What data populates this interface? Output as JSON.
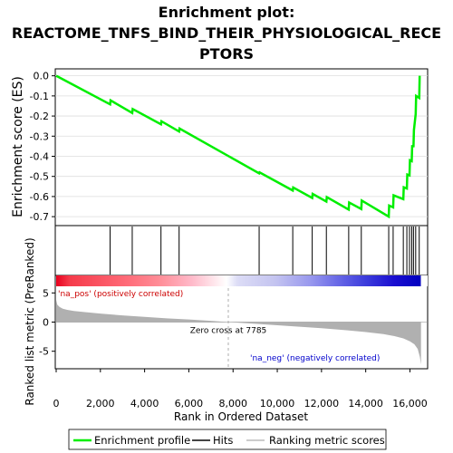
{
  "chart_data": {
    "type": "line",
    "title_lines": [
      "Enrichment plot:",
      "REACTOME_TNFS_BIND_THEIR_PHYSIOLOGICAL_RECE",
      "PTORS"
    ],
    "es_ylabel": "Enrichment score (ES)",
    "es_ylim": [
      -0.74,
      0.03
    ],
    "es_yticks": [
      0.0,
      -0.1,
      -0.2,
      -0.3,
      -0.4,
      -0.5,
      -0.6,
      -0.7
    ],
    "es_ytick_labels": [
      "0.0",
      "-0.1",
      "-0.2",
      "-0.3",
      "-0.4",
      "-0.5",
      "-0.6",
      "-0.7"
    ],
    "xlabel": "Rank in Ordered Dataset",
    "xlim": [
      0,
      16800
    ],
    "xticks": [
      0,
      2000,
      4000,
      6000,
      8000,
      10000,
      12000,
      14000,
      16000
    ],
    "xtick_labels": [
      "0",
      "2,000",
      "4,000",
      "6,000",
      "8,000",
      "10,000",
      "12,000",
      "14,000",
      "16,000"
    ],
    "enrichment_profile": {
      "x": [
        0,
        2440,
        2460,
        3440,
        3460,
        4740,
        4760,
        5560,
        5580,
        9180,
        9200,
        10700,
        10720,
        11580,
        11600,
        12220,
        12240,
        13230,
        13250,
        13800,
        13820,
        15040,
        15060,
        15240,
        15260,
        15700,
        15720,
        15860,
        15880,
        15980,
        16000,
        16080,
        16100,
        16160,
        16180,
        16260,
        16280,
        16420,
        16440
      ],
      "y": [
        0.0,
        -0.142,
        -0.122,
        -0.185,
        -0.165,
        -0.241,
        -0.226,
        -0.277,
        -0.262,
        -0.485,
        -0.48,
        -0.57,
        -0.555,
        -0.607,
        -0.587,
        -0.625,
        -0.603,
        -0.665,
        -0.63,
        -0.662,
        -0.62,
        -0.7,
        -0.645,
        -0.654,
        -0.594,
        -0.613,
        -0.554,
        -0.56,
        -0.491,
        -0.495,
        -0.42,
        -0.424,
        -0.35,
        -0.35,
        -0.27,
        -0.19,
        -0.1,
        -0.11,
        0.0
      ]
    },
    "hits": [
      2440,
      3440,
      4740,
      5560,
      9180,
      10700,
      11580,
      12220,
      13230,
      13800,
      15040,
      15240,
      15700,
      15860,
      15980,
      16080,
      16160,
      16260,
      16420
    ],
    "metric_ylabel": "Ranked list metric (PreRanked)",
    "metric_ylim": [
      -8,
      8
    ],
    "metric_yticks": [
      5,
      0,
      -5
    ],
    "metric_ytick_labels": [
      "5",
      "0",
      "-5"
    ],
    "metric_curve": {
      "x": [
        0,
        50,
        150,
        300,
        500,
        800,
        1200,
        2000,
        3000,
        4000,
        5000,
        6000,
        7000,
        7785,
        9000,
        10000,
        11000,
        12000,
        13000,
        14000,
        14800,
        15300,
        15700,
        16000,
        16200,
        16350,
        16450,
        16500
      ],
      "y": [
        3.8,
        3.0,
        2.6,
        2.3,
        2.1,
        1.9,
        1.75,
        1.45,
        1.15,
        0.9,
        0.65,
        0.45,
        0.22,
        0.0,
        -0.3,
        -0.55,
        -0.8,
        -1.05,
        -1.35,
        -1.7,
        -2.05,
        -2.4,
        -2.8,
        -3.3,
        -3.8,
        -4.6,
        -6.0,
        -7.3
      ]
    },
    "zero_cross_rank": 7785,
    "zero_cross_label": "Zero cross at 7785",
    "pos_label": "'na_pos' (positively correlated)",
    "neg_label": "'na_neg' (negatively correlated)",
    "colors": {
      "profile": "#00ee00",
      "hits": "#000000",
      "metric_fill": "#b0b0b0",
      "pos_text": "#cc0000",
      "neg_text": "#0000cc",
      "zero_line": "#999999"
    },
    "color_bar_stops": [
      {
        "x": 0,
        "color": "#e8001e"
      },
      {
        "x": 600,
        "color": "#f53a4a"
      },
      {
        "x": 3200,
        "color": "#ff6b78"
      },
      {
        "x": 4700,
        "color": "#ff8e98"
      },
      {
        "x": 6100,
        "color": "#ffb8c8"
      },
      {
        "x": 7700,
        "color": "#ffffff"
      },
      {
        "x": 8200,
        "color": "#dcdcf6"
      },
      {
        "x": 9900,
        "color": "#c4c4f0"
      },
      {
        "x": 11500,
        "color": "#9898ee"
      },
      {
        "x": 12800,
        "color": "#6666e6"
      },
      {
        "x": 14000,
        "color": "#3c3cdc"
      },
      {
        "x": 15300,
        "color": "#1a0ed0"
      },
      {
        "x": 16500,
        "color": "#0000c0"
      }
    ],
    "legend": [
      {
        "label": "Enrichment profile",
        "swatch": "line",
        "color": "#00ee00"
      },
      {
        "label": "Hits",
        "swatch": "line",
        "color": "#444444"
      },
      {
        "label": "Ranking metric scores",
        "swatch": "line",
        "color": "#cccccc"
      }
    ]
  }
}
